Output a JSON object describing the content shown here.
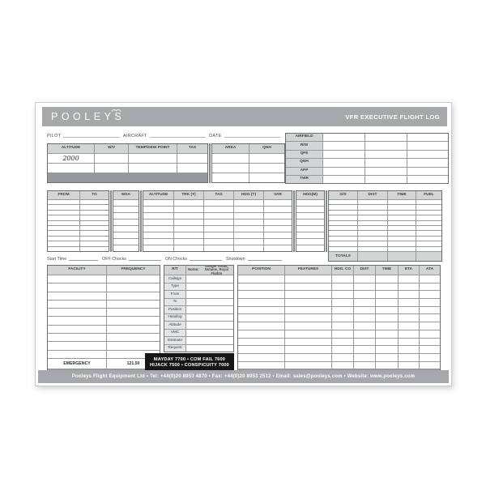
{
  "colors": {
    "banner": "#a6a8ab",
    "header-cell": "#d3d4d6",
    "subrow-cell": "#e4e5e7",
    "black-box": "#161616",
    "grid-line": "#97999c",
    "outer-border": "#6b6d70"
  },
  "banner": {
    "logo": "POOLEYS",
    "title": "VFR EXECUTIVE FLIGHT LOG"
  },
  "info_line": {
    "pilot": "PILOT",
    "aircraft": "AIRCRAFT",
    "date": "DATE"
  },
  "weather_table": {
    "headers": [
      "ALTITUDE",
      "W/V",
      "TEMP/DEW POINT",
      "TAS"
    ],
    "area_headers": [
      "AREA",
      "QNH"
    ],
    "sample_altitude": "2000"
  },
  "airfield_table": {
    "row_labels": [
      "AIRFIELD",
      "R/W",
      "QFE",
      "QNH",
      "APP",
      "TWR"
    ]
  },
  "route_table": {
    "from_to_headers": [
      "FROM",
      "TO"
    ],
    "msa_header": "MSA",
    "nav_headers": [
      "ALTITUDE",
      "TRK (T)",
      "TAS",
      "HDG (T)",
      "VAR"
    ],
    "hdg_m_header": "HDG(M)",
    "performance_headers": [
      "G/S",
      "DIST",
      "TIME",
      "FUEL"
    ],
    "totals_label": "TOTALS"
  },
  "chocks_line": {
    "labels": [
      "Start Time",
      "OFF Chocks",
      "ON Chocks",
      "Shutdown"
    ]
  },
  "facility_table": {
    "headers": [
      "FACILITY",
      "FREQUENCY"
    ],
    "emergency_label": "EMERGENCY",
    "emergency_frequency": "121.50"
  },
  "rt_section": {
    "header": "R/T",
    "notes_label": "Notes:",
    "notes_text": "Danger Areas, Notams, Royal Flights",
    "row_labels": [
      "Callsign",
      "Type",
      "From",
      "To",
      "Position",
      "Heading",
      "Altitude",
      "VMC",
      "Estimate",
      "Request"
    ],
    "transponder_line1": "MAYDAY 7700 • COM FAIL 7600",
    "transponder_line2": "HIJACK 7500 • CONSPICUITY 7000"
  },
  "position_table": {
    "headers": [
      "POSITION",
      "FEATURES",
      "HDG. CO",
      "DIST",
      "TIME",
      "ETA",
      "ATA"
    ]
  },
  "footer": {
    "text": "Pooleys Flight Equipment Ltd  •  Tel: +44(0)20 8953 4870  •  Fax: +44(0)20 8953 2512  •  Email: sales@pooleys.com  •  Website: www.pooleys.com"
  }
}
